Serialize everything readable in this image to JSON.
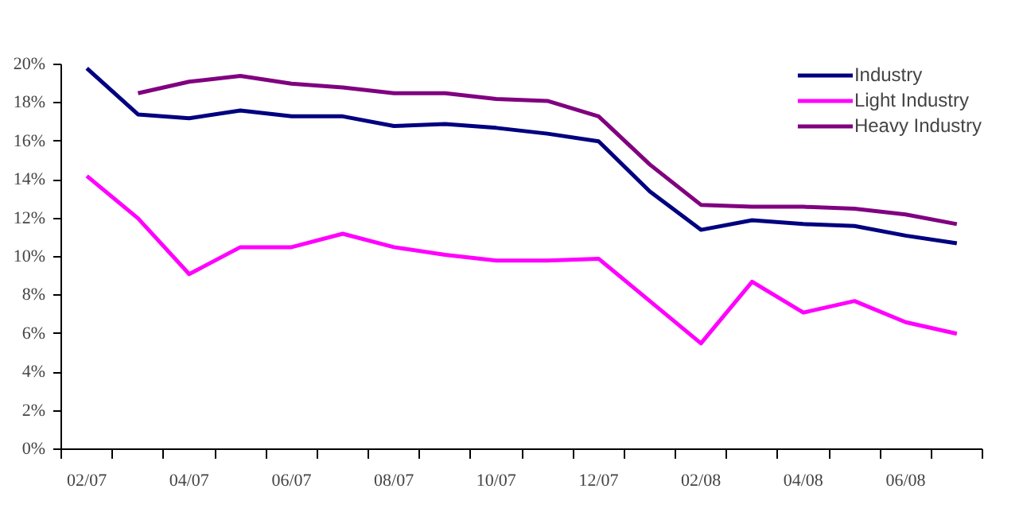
{
  "chart_data": {
    "type": "line",
    "categories": [
      "02/07",
      null,
      "04/07",
      null,
      "06/07",
      null,
      "08/07",
      null,
      "10/07",
      null,
      "12/07",
      null,
      "02/08",
      null,
      "04/08",
      null,
      "06/08",
      null
    ],
    "series": [
      {
        "name": "Industry",
        "color": "#000080",
        "values": [
          19.8,
          17.4,
          17.2,
          17.6,
          17.3,
          17.3,
          16.8,
          16.9,
          16.7,
          16.4,
          16.0,
          13.4,
          11.4,
          11.9,
          11.7,
          11.6,
          11.1,
          10.7
        ]
      },
      {
        "name": "Light Industry",
        "color": "#ff00ff",
        "values": [
          14.2,
          12.0,
          9.1,
          10.5,
          10.5,
          11.2,
          10.5,
          10.1,
          9.8,
          9.8,
          9.9,
          7.7,
          5.5,
          8.7,
          7.1,
          7.7,
          6.6,
          6.0
        ]
      },
      {
        "name": "Heavy Industry",
        "color": "#800080",
        "values": [
          null,
          18.5,
          19.1,
          19.4,
          19.0,
          18.8,
          18.5,
          18.5,
          18.2,
          18.1,
          17.3,
          14.8,
          12.7,
          12.6,
          12.6,
          12.5,
          12.2,
          11.7
        ]
      }
    ],
    "ylim": [
      0,
      20
    ],
    "yticks": [
      {
        "value": 0,
        "label": "0%"
      },
      {
        "value": 2,
        "label": "2%"
      },
      {
        "value": 4,
        "label": "4%"
      },
      {
        "value": 6,
        "label": "6%"
      },
      {
        "value": 8,
        "label": "8%"
      },
      {
        "value": 10,
        "label": "10%"
      },
      {
        "value": 12,
        "label": "12%"
      },
      {
        "value": 14,
        "label": "14%"
      },
      {
        "value": 16,
        "label": "16%"
      },
      {
        "value": 18,
        "label": "18%"
      },
      {
        "value": 20,
        "label": "20%"
      }
    ],
    "grid": false,
    "legend": "top right",
    "line_style": "solid",
    "marker": "none"
  }
}
